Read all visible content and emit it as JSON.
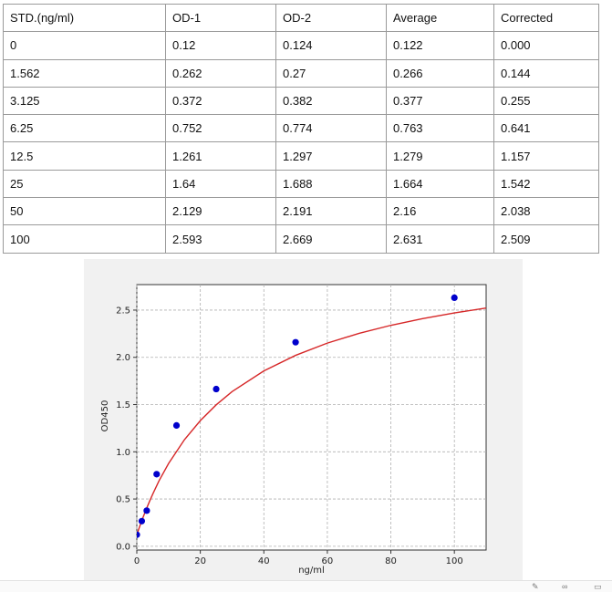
{
  "table": {
    "headers": [
      "STD.(ng/ml)",
      "OD-1",
      "OD-2",
      "Average",
      "Corrected"
    ],
    "rows": [
      [
        "0",
        "0.12",
        "0.124",
        "0.122",
        "0.000"
      ],
      [
        "1.562",
        "0.262",
        "0.27",
        "0.266",
        "0.144"
      ],
      [
        "3.125",
        "0.372",
        "0.382",
        "0.377",
        "0.255"
      ],
      [
        "6.25",
        "0.752",
        "0.774",
        "0.763",
        "0.641"
      ],
      [
        "12.5",
        "1.261",
        "1.297",
        "1.279",
        "1.157"
      ],
      [
        "25",
        "1.64",
        "1.688",
        "1.664",
        "1.542"
      ],
      [
        "50",
        "2.129",
        "2.191",
        "2.16",
        "2.038"
      ],
      [
        "100",
        "2.593",
        "2.669",
        "2.631",
        "2.509"
      ]
    ]
  },
  "chart_data": {
    "type": "scatter",
    "xlabel": "ng/ml",
    "ylabel": "OD450",
    "xlim": [
      0,
      110
    ],
    "ylim": [
      -0.04,
      2.77
    ],
    "xticks": [
      0,
      20,
      40,
      60,
      80,
      100
    ],
    "yticks": [
      0.0,
      0.5,
      1.0,
      1.5,
      2.0,
      2.5
    ],
    "xtick_labels": [
      "0",
      "20",
      "40",
      "60",
      "80",
      "100"
    ],
    "ytick_labels": [
      "0.0",
      "0.5",
      "1.0",
      "1.5",
      "2.0",
      "2.5"
    ],
    "grid": true,
    "points": {
      "x": [
        0,
        1.562,
        3.125,
        6.25,
        12.5,
        25,
        50,
        100
      ],
      "y": [
        0.122,
        0.266,
        0.377,
        0.763,
        1.279,
        1.664,
        2.16,
        2.631
      ],
      "color": "#0000cc"
    },
    "fit_curve": {
      "color": "#d62728",
      "x": [
        0,
        1,
        2,
        3,
        4,
        5,
        7,
        10,
        15,
        20,
        25,
        30,
        40,
        50,
        60,
        70,
        80,
        90,
        100,
        110
      ],
      "y": [
        0.122,
        0.218,
        0.309,
        0.394,
        0.475,
        0.551,
        0.693,
        0.876,
        1.128,
        1.33,
        1.497,
        1.637,
        1.856,
        2.021,
        2.151,
        2.254,
        2.339,
        2.41,
        2.47,
        2.522
      ]
    }
  },
  "footer_icons": [
    "pen-icon",
    "glasses-icon",
    "trash-icon"
  ]
}
